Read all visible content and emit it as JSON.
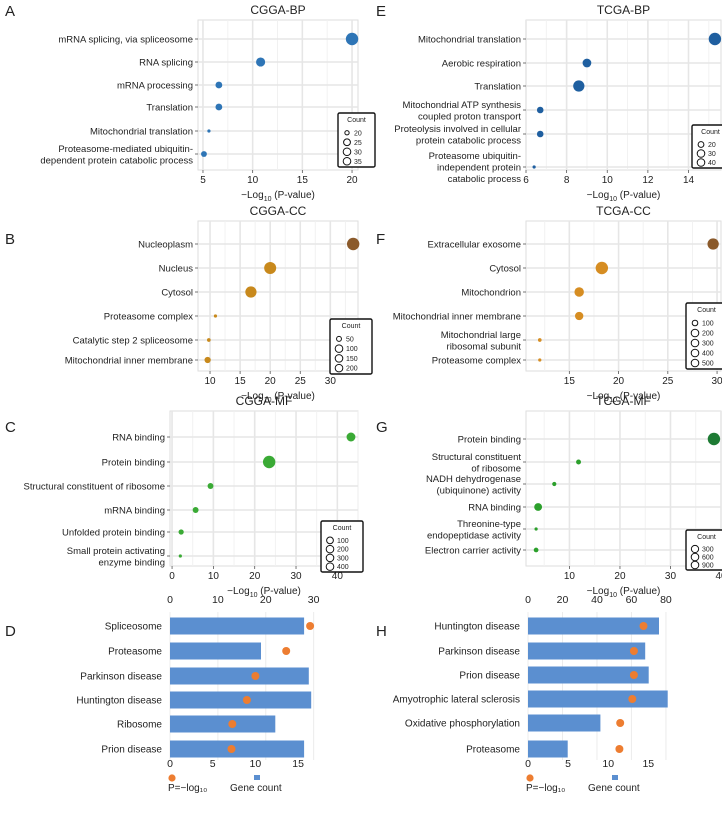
{
  "figure": {
    "x_axis_label_prefix": "−Log",
    "x_axis_label_subscript": "10",
    "x_axis_label_suffix": " (P-value)",
    "legend_title": "Count"
  },
  "chart_data": [
    {
      "panel": "A",
      "type": "scatter",
      "title": "CGGA-BP",
      "color": "#2e75b6",
      "categories": [
        "mRNA splicing, via spliceosome",
        "RNA splicing",
        "mRNA processing",
        "Translation",
        "Mitochondrial translation",
        "Proteasome-mediated ubiquitin-dependent protein catabolic process"
      ],
      "label_lines": [
        [
          "mRNA splicing, via spliceosome"
        ],
        [
          "RNA splicing"
        ],
        [
          "mRNA processing"
        ],
        [
          "Translation"
        ],
        [
          "Mitochondrial translation"
        ],
        [
          "Proteasome-mediated ubiquitin-",
          "dependent protein catabolic process"
        ]
      ],
      "x": [
        20.0,
        10.8,
        6.6,
        6.6,
        5.6,
        5.1
      ],
      "counts": [
        38,
        30,
        25,
        25,
        18,
        23
      ],
      "xlim": [
        4.5,
        20.6
      ],
      "xticks": [
        5,
        10,
        15,
        20
      ],
      "legend_counts": [
        20,
        25,
        30,
        35
      ],
      "legend_range": [
        18,
        38
      ]
    },
    {
      "panel": "E",
      "type": "scatter",
      "title": "TCGA-BP",
      "color": "#1f5fa0",
      "categories": [
        "Mitochondrial translation",
        "Aerobic respiration",
        "Translation",
        "Mitochondrial ATP synthesis coupled proton transport",
        "Proteolysis involved in cellular protein catabolic process",
        "Proteasome ubiquitin-independent protein catabolic process"
      ],
      "label_lines": [
        [
          "Mitochondrial translation"
        ],
        [
          "Aerobic respiration"
        ],
        [
          "Translation"
        ],
        [
          "Mitochondrial ATP synthesis",
          "coupled proton transport"
        ],
        [
          "Proteolysis involved in cellular",
          "protein catabolic process"
        ],
        [
          "Proteasome ubiquitin-",
          "independent protein",
          "catabolic process"
        ]
      ],
      "x": [
        15.3,
        9.0,
        8.6,
        6.7,
        6.7,
        6.4
      ],
      "counts": [
        40,
        28,
        36,
        22,
        22,
        14
      ],
      "xlim": [
        6.0,
        15.6
      ],
      "xticks": [
        6,
        8,
        10,
        12,
        14
      ],
      "legend_counts": [
        20,
        30,
        40
      ],
      "legend_range": [
        14,
        40
      ]
    },
    {
      "panel": "B",
      "type": "scatter",
      "title": "CGGA-CC",
      "color": "#c8891c",
      "special_colors": {
        "0": "#8b5a2b"
      },
      "categories": [
        "Nucleoplasm",
        "Nucleus",
        "Cytosol",
        "Proteasome complex",
        "Catalytic step 2 spliceosome",
        "Mitochondrial inner membrane"
      ],
      "label_lines": [
        [
          "Nucleoplasm"
        ],
        [
          "Nucleus"
        ],
        [
          "Cytosol"
        ],
        [
          "Proteasome complex"
        ],
        [
          "Catalytic step 2 spliceosome"
        ],
        [
          "Mitochondrial inner membrane"
        ]
      ],
      "x": [
        33.8,
        20.0,
        16.8,
        10.9,
        9.8,
        9.6
      ],
      "counts": [
        200,
        190,
        170,
        30,
        35,
        70
      ],
      "xlim": [
        8.0,
        34.6
      ],
      "xticks": [
        10,
        15,
        20,
        25,
        30
      ],
      "legend_counts": [
        50,
        100,
        150,
        200
      ],
      "legend_range": [
        30,
        200
      ]
    },
    {
      "panel": "F",
      "type": "scatter",
      "title": "TCGA-CC",
      "color": "#d68d22",
      "special_colors": {
        "0": "#8b5a2b"
      },
      "categories": [
        "Extracellular exosome",
        "Cytosol",
        "Mitochondrion",
        "Mitochondrial inner membrane",
        "Mitochondrial large ribosomal subunit",
        "Proteasome complex"
      ],
      "label_lines": [
        [
          "Extracellular exosome"
        ],
        [
          "Cytosol"
        ],
        [
          "Mitochondrion"
        ],
        [
          "Mitochondrial inner membrane"
        ],
        [
          "Mitochondrial large",
          "ribosomal subunit"
        ],
        [
          "Proteasome complex"
        ]
      ],
      "x": [
        29.6,
        18.3,
        16.0,
        16.0,
        12.0,
        12.0
      ],
      "counts": [
        430,
        520,
        300,
        230,
        40,
        30
      ],
      "xlim": [
        10.6,
        30.4
      ],
      "xticks": [
        15,
        20,
        25,
        30
      ],
      "legend_counts": [
        100,
        200,
        300,
        400,
        500
      ],
      "legend_range": [
        30,
        520
      ]
    },
    {
      "panel": "C",
      "type": "scatter",
      "title": "CGGA-MF",
      "color": "#3aaa35",
      "categories": [
        "RNA binding",
        "Protein binding",
        "Structural constituent of ribosome",
        "mRNA binding",
        "Unfolded protein binding",
        "Small protein activating enzyme binding"
      ],
      "label_lines": [
        [
          "RNA binding"
        ],
        [
          "Protein binding"
        ],
        [
          "Structural constituent of ribosome"
        ],
        [
          "mRNA binding"
        ],
        [
          "Unfolded protein binding"
        ],
        [
          "Small protein activating",
          "enzyme binding"
        ]
      ],
      "x": [
        43.3,
        23.5,
        9.3,
        5.7,
        2.2,
        2.0
      ],
      "counts": [
        200,
        440,
        70,
        70,
        50,
        10
      ],
      "xlim": [
        -0.5,
        45.0
      ],
      "xticks": [
        0,
        10,
        20,
        30,
        40
      ],
      "legend_counts": [
        100,
        200,
        300,
        400
      ],
      "legend_range": [
        10,
        440
      ]
    },
    {
      "panel": "G",
      "type": "scatter",
      "title": "TCGA-MF",
      "color": "#2ca02c",
      "special_colors": {
        "0": "#1e7b34"
      },
      "categories": [
        "Protein binding",
        "Structural constituent of ribosome",
        "NADH dehydrogenase (ubiquinone) activity",
        "RNA binding",
        "Threonine-type endopeptidase activity",
        "Electron carrier activity"
      ],
      "label_lines": [
        [
          "Protein binding"
        ],
        [
          "Structural constituent",
          "of ribosome"
        ],
        [
          "NADH dehydrogenase",
          "(ubiquinone) activity"
        ],
        [
          "RNA binding"
        ],
        [
          "Threonine-type",
          "endopeptidase activity"
        ],
        [
          "Electron carrier activity"
        ]
      ],
      "x": [
        38.6,
        11.8,
        7.0,
        3.8,
        3.4,
        3.4
      ],
      "counts": [
        960,
        120,
        80,
        350,
        40,
        110
      ],
      "xlim": [
        1.4,
        40.0
      ],
      "xticks": [
        10,
        20,
        30,
        40
      ],
      "legend_counts": [
        300,
        600,
        900
      ],
      "legend_range": [
        40,
        960
      ]
    },
    {
      "panel": "D",
      "type": "bar",
      "categories": [
        "Spliceosome",
        "Proteasome",
        "Parkinson disease",
        "Huntington disease",
        "Ribosome",
        "Prion disease"
      ],
      "values": [
        28,
        19,
        29,
        29.5,
        22,
        28
      ],
      "points": [
        16.4,
        13.6,
        10.0,
        9.0,
        7.3,
        7.2
      ],
      "bar_axis": {
        "lim": [
          0,
          33
        ],
        "ticks": [
          0,
          10,
          20,
          30
        ]
      },
      "point_axis": {
        "lim": [
          0,
          18.5
        ],
        "ticks": [
          0,
          5,
          10,
          15
        ]
      },
      "bar_color": "#5b8fd0",
      "point_color": "#ed7d31",
      "legend_point_label": "P=−log₁₀",
      "legend_bar_label": "Gene count"
    },
    {
      "panel": "H",
      "type": "bar",
      "categories": [
        "Huntington disease",
        "Parkinson disease",
        "Prion disease",
        "Amyotrophic lateral sclerosis",
        "Oxidative phosphorylation",
        "Proteasome"
      ],
      "values": [
        76,
        68,
        70,
        81,
        42,
        23
      ],
      "points": [
        14.4,
        13.2,
        13.2,
        13.0,
        11.5,
        11.4
      ],
      "bar_axis": {
        "lim": [
          0,
          87
        ],
        "ticks": [
          0,
          20,
          40,
          60,
          80
        ]
      },
      "point_axis": {
        "lim": [
          0,
          18.7
        ],
        "ticks": [
          0,
          5,
          10,
          15
        ]
      },
      "bar_color": "#5b8fd0",
      "point_color": "#ed7d31",
      "legend_point_label": "P=−log₁₀",
      "legend_bar_label": "Gene count"
    }
  ]
}
